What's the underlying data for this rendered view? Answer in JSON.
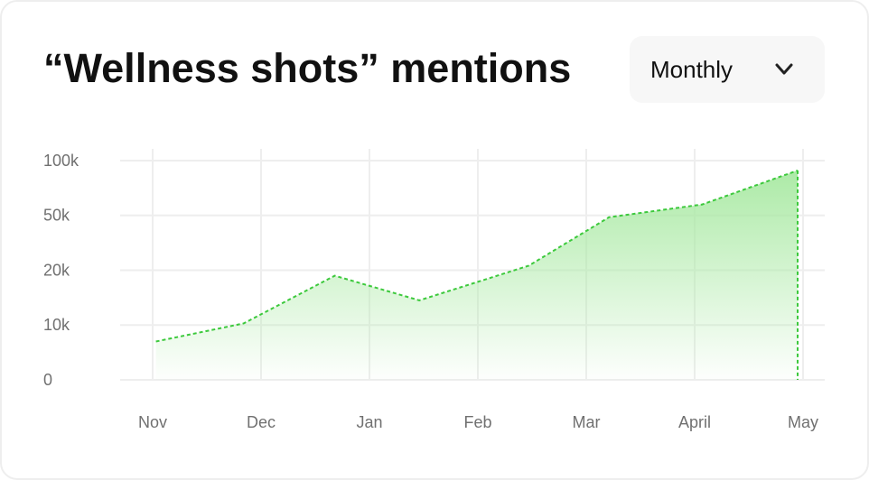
{
  "chart_data": {
    "type": "area",
    "title": "“Wellness shots” mentions",
    "dropdown": "Monthly",
    "color": "#3cc93c",
    "fill_color": "#a8e9a2",
    "x": [
      0.03,
      0.84,
      1.68,
      2.46,
      3.47,
      4.21,
      5.07,
      5.95
    ],
    "values": [
      7000,
      10300,
      19000,
      14500,
      22500,
      49000,
      60000,
      91000
    ],
    "xlim": [
      -0.3,
      6.2
    ],
    "xticks": [
      {
        "value": 0,
        "label": "Nov"
      },
      {
        "value": 1,
        "label": "Dec"
      },
      {
        "value": 2,
        "label": "Jan"
      },
      {
        "value": 3,
        "label": "Feb"
      },
      {
        "value": 4,
        "label": "Mar"
      },
      {
        "value": 5,
        "label": "April"
      },
      {
        "value": 6,
        "label": "May"
      }
    ],
    "ylim": [
      0,
      100000
    ],
    "yticks": [
      0,
      {
        "value": 10000,
        "label": "10k"
      },
      {
        "value": 20000,
        "label": "20k"
      },
      {
        "value": 50000,
        "label": "50k"
      },
      {
        "value": 100000,
        "label": "100k"
      }
    ],
    "grid": true
  }
}
